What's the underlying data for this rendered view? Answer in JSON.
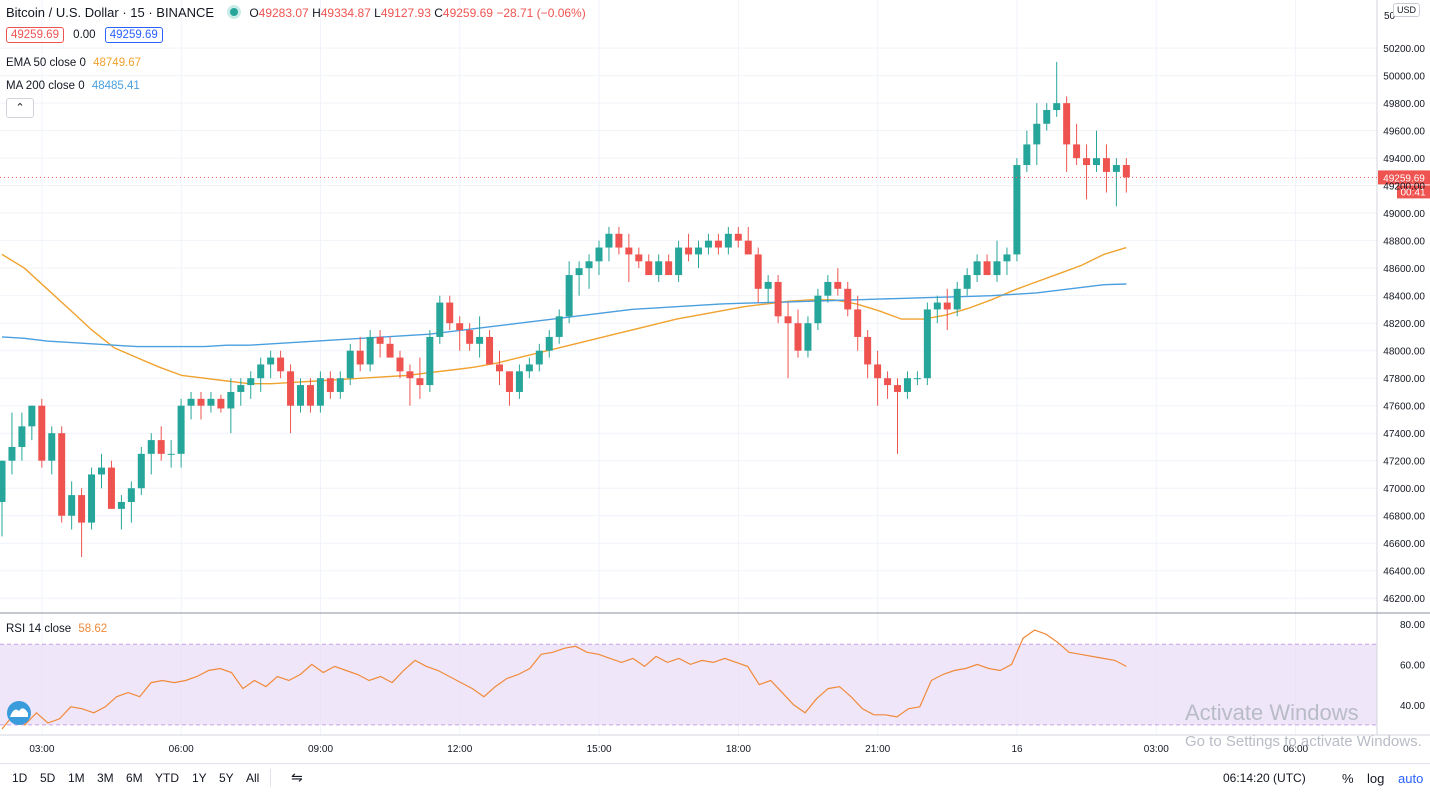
{
  "header": {
    "symbol": "Bitcoin / U.S. Dollar · 15 · BINANCE",
    "ohlc": [
      {
        "label": "O",
        "value": "49283.07"
      },
      {
        "label": "H",
        "value": "49334.87"
      },
      {
        "label": "L",
        "value": "49127.93"
      },
      {
        "label": "C",
        "value": "49259.69"
      }
    ],
    "change": "−28.71 (−0.06%)",
    "bid": "49259.69",
    "spread": "0.00",
    "ask": "49259.69"
  },
  "indicators": {
    "ema": {
      "label": "EMA 50 close 0",
      "value": "48749.67",
      "color": "#f0a22e"
    },
    "ma": {
      "label": "MA 200 close 0",
      "value": "48485.41",
      "color": "#4a9fdf"
    },
    "rsi": {
      "label": "RSI 14 close",
      "value": "58.62",
      "color": "#f08a3a"
    }
  },
  "price_axis": {
    "currency": "USD",
    "top_partial": "50",
    "last_price": "49259.69",
    "countdown": "00:41"
  },
  "time_axis": [
    "03:00",
    "06:00",
    "09:00",
    "12:00",
    "15:00",
    "18:00",
    "21:00",
    "16",
    "03:00",
    "06:00"
  ],
  "bottom_bar": {
    "ranges": [
      "1D",
      "5D",
      "1M",
      "3M",
      "6M",
      "YTD",
      "1Y",
      "5Y",
      "All"
    ],
    "clock": "06:14:20 (UTC)",
    "percent": "%",
    "log": "log",
    "auto": "auto"
  },
  "watermark": {
    "line1": "Activate Windows",
    "line2": "Go to Settings to activate Windows."
  },
  "colors": {
    "up": "#26a69a",
    "down": "#ef5350",
    "rsi_band": "#eadcf8",
    "grid": "#f0f3fa"
  },
  "chart_data": {
    "type": "candlestick",
    "title": "Bitcoin / U.S. Dollar · 15 · BINANCE",
    "interval": "15",
    "ylim": [
      46100,
      50550
    ],
    "yticks": [
      46200,
      46400,
      46600,
      46800,
      47000,
      47200,
      47400,
      47600,
      47800,
      48000,
      48200,
      48400,
      48600,
      48800,
      49000,
      49200,
      49400,
      49600,
      49800,
      50000,
      50200
    ],
    "x_ticks": [
      {
        "label": "03:00",
        "index": 2
      },
      {
        "label": "06:00",
        "index": 16
      },
      {
        "label": "09:00",
        "index": 30
      },
      {
        "label": "12:00",
        "index": 44
      },
      {
        "label": "15:00",
        "index": 58
      },
      {
        "label": "18:00",
        "index": 72
      },
      {
        "label": "21:00",
        "index": 86
      },
      {
        "label": "16",
        "index": 100
      },
      {
        "label": "03:00",
        "index": 114
      },
      {
        "label": "06:00",
        "index": 128
      }
    ],
    "candles": [
      [
        46900,
        47200,
        46650,
        47200
      ],
      [
        47200,
        47550,
        47100,
        47300
      ],
      [
        47300,
        47550,
        47200,
        47450
      ],
      [
        47450,
        47600,
        47350,
        47600
      ],
      [
        47600,
        47650,
        47150,
        47200
      ],
      [
        47200,
        47450,
        47100,
        47400
      ],
      [
        47400,
        47450,
        46750,
        46800
      ],
      [
        46800,
        47050,
        46700,
        46950
      ],
      [
        46950,
        47000,
        46500,
        46750
      ],
      [
        46750,
        47150,
        46700,
        47100
      ],
      [
        47100,
        47250,
        47000,
        47150
      ],
      [
        47150,
        47200,
        46850,
        46850
      ],
      [
        46850,
        46950,
        46700,
        46900
      ],
      [
        46900,
        47050,
        46750,
        47000
      ],
      [
        47000,
        47300,
        46950,
        47250
      ],
      [
        47250,
        47400,
        47100,
        47350
      ],
      [
        47350,
        47450,
        47200,
        47250
      ],
      [
        47250,
        47350,
        47150,
        47250
      ],
      [
        47250,
        47650,
        47150,
        47600
      ],
      [
        47600,
        47700,
        47500,
        47650
      ],
      [
        47650,
        47700,
        47500,
        47600
      ],
      [
        47600,
        47700,
        47550,
        47650
      ],
      [
        47650,
        47680,
        47550,
        47580
      ],
      [
        47580,
        47800,
        47400,
        47700
      ],
      [
        47700,
        47800,
        47600,
        47750
      ],
      [
        47750,
        47850,
        47650,
        47800
      ],
      [
        47800,
        47950,
        47700,
        47900
      ],
      [
        47900,
        48000,
        47800,
        47950
      ],
      [
        47950,
        48000,
        47800,
        47850
      ],
      [
        47850,
        47900,
        47400,
        47600
      ],
      [
        47600,
        47800,
        47550,
        47750
      ],
      [
        47750,
        47800,
        47550,
        47600
      ],
      [
        47600,
        47850,
        47550,
        47800
      ],
      [
        47800,
        47850,
        47650,
        47700
      ],
      [
        47700,
        47850,
        47650,
        47800
      ],
      [
        47800,
        48050,
        47750,
        48000
      ],
      [
        48000,
        48100,
        47850,
        47900
      ],
      [
        47900,
        48150,
        47850,
        48100
      ],
      [
        48100,
        48150,
        47950,
        48050
      ],
      [
        48050,
        48100,
        47950,
        47950
      ],
      [
        47950,
        48000,
        47800,
        47850
      ],
      [
        47850,
        47900,
        47600,
        47800
      ],
      [
        47800,
        47950,
        47650,
        47750
      ],
      [
        47750,
        48150,
        47700,
        48100
      ],
      [
        48100,
        48400,
        48050,
        48350
      ],
      [
        48350,
        48400,
        48150,
        48200
      ],
      [
        48200,
        48250,
        48000,
        48150
      ],
      [
        48150,
        48200,
        48000,
        48050
      ],
      [
        48050,
        48250,
        47950,
        48100
      ],
      [
        48100,
        48150,
        47900,
        47900
      ],
      [
        47900,
        48000,
        47750,
        47850
      ],
      [
        47850,
        47850,
        47600,
        47700
      ],
      [
        47700,
        47900,
        47650,
        47850
      ],
      [
        47850,
        47950,
        47800,
        47900
      ],
      [
        47900,
        48050,
        47850,
        48000
      ],
      [
        48000,
        48150,
        47950,
        48100
      ],
      [
        48100,
        48300,
        48050,
        48250
      ],
      [
        48250,
        48650,
        48200,
        48550
      ],
      [
        48550,
        48650,
        48400,
        48600
      ],
      [
        48600,
        48700,
        48450,
        48650
      ],
      [
        48650,
        48800,
        48550,
        48750
      ],
      [
        48750,
        48900,
        48650,
        48850
      ],
      [
        48850,
        48900,
        48700,
        48750
      ],
      [
        48750,
        48850,
        48500,
        48700
      ],
      [
        48700,
        48750,
        48600,
        48650
      ],
      [
        48650,
        48700,
        48550,
        48550
      ],
      [
        48550,
        48700,
        48500,
        48650
      ],
      [
        48650,
        48700,
        48550,
        48550
      ],
      [
        48550,
        48800,
        48500,
        48750
      ],
      [
        48750,
        48850,
        48650,
        48700
      ],
      [
        48700,
        48800,
        48600,
        48750
      ],
      [
        48750,
        48850,
        48700,
        48800
      ],
      [
        48800,
        48850,
        48700,
        48750
      ],
      [
        48750,
        48900,
        48700,
        48850
      ],
      [
        48850,
        48900,
        48750,
        48800
      ],
      [
        48800,
        48900,
        48700,
        48700
      ],
      [
        48700,
        48750,
        48350,
        48450
      ],
      [
        48450,
        48550,
        48350,
        48500
      ],
      [
        48500,
        48550,
        48200,
        48250
      ],
      [
        48250,
        48350,
        47800,
        48200
      ],
      [
        48200,
        48300,
        47950,
        48000
      ],
      [
        48000,
        48250,
        47950,
        48200
      ],
      [
        48200,
        48450,
        48150,
        48400
      ],
      [
        48400,
        48550,
        48350,
        48500
      ],
      [
        48500,
        48600,
        48400,
        48450
      ],
      [
        48450,
        48500,
        48250,
        48300
      ],
      [
        48300,
        48400,
        48000,
        48100
      ],
      [
        48100,
        48150,
        47800,
        47900
      ],
      [
        47900,
        48000,
        47600,
        47800
      ],
      [
        47800,
        47850,
        47650,
        47750
      ],
      [
        47750,
        47800,
        47250,
        47700
      ],
      [
        47700,
        47850,
        47650,
        47800
      ],
      [
        47800,
        47850,
        47750,
        47800
      ],
      [
        47800,
        48350,
        47750,
        48300
      ],
      [
        48300,
        48400,
        48200,
        48350
      ],
      [
        48350,
        48450,
        48150,
        48300
      ],
      [
        48300,
        48500,
        48250,
        48450
      ],
      [
        48450,
        48600,
        48400,
        48550
      ],
      [
        48550,
        48700,
        48500,
        48650
      ],
      [
        48650,
        48700,
        48550,
        48550
      ],
      [
        48550,
        48800,
        48500,
        48650
      ],
      [
        48650,
        48750,
        48550,
        48700
      ],
      [
        48700,
        49400,
        48650,
        49350
      ],
      [
        49350,
        49600,
        49300,
        49500
      ],
      [
        49500,
        49800,
        49350,
        49650
      ],
      [
        49650,
        49800,
        49600,
        49750
      ],
      [
        49750,
        50100,
        49700,
        49800
      ],
      [
        49800,
        49850,
        49300,
        49500
      ],
      [
        49500,
        49650,
        49350,
        49400
      ],
      [
        49400,
        49500,
        49100,
        49350
      ],
      [
        49350,
        49600,
        49300,
        49400
      ],
      [
        49400,
        49500,
        49150,
        49300
      ],
      [
        49300,
        49400,
        49050,
        49350
      ],
      [
        49350,
        49400,
        49150,
        49260
      ]
    ],
    "series": [
      {
        "name": "EMA 50 close 0",
        "values": [
          48700,
          48600,
          48450,
          48300,
          48150,
          48020,
          47950,
          47880,
          47820,
          47800,
          47780,
          47760,
          47760,
          47770,
          47780,
          47790,
          47800,
          47810,
          47820,
          47840,
          47860,
          47880,
          47910,
          47950,
          47990,
          48030,
          48070,
          48110,
          48150,
          48190,
          48230,
          48260,
          48290,
          48320,
          48340,
          48360,
          48370,
          48370,
          48340,
          48290,
          48230,
          48230,
          48260,
          48310,
          48370,
          48440,
          48500,
          48560,
          48620,
          48700,
          48750
        ]
      },
      {
        "name": "MA 200 close 0",
        "values": [
          48100,
          48090,
          48070,
          48060,
          48050,
          48040,
          48030,
          48030,
          48030,
          48030,
          48040,
          48040,
          48050,
          48060,
          48070,
          48080,
          48090,
          48100,
          48110,
          48120,
          48140,
          48160,
          48180,
          48200,
          48220,
          48240,
          48260,
          48280,
          48300,
          48310,
          48320,
          48330,
          48340,
          48345,
          48350,
          48355,
          48360,
          48365,
          48370,
          48375,
          48380,
          48385,
          48390,
          48395,
          48400,
          48410,
          48420,
          48440,
          48460,
          48480,
          48485
        ]
      }
    ],
    "rsi": {
      "label": "RSI 14 close",
      "ylim": [
        25,
        85
      ],
      "yticks": [
        40,
        60,
        80
      ],
      "band": [
        30,
        70
      ],
      "values": [
        28,
        35,
        30,
        36,
        31,
        33,
        39,
        38,
        36,
        39,
        44,
        46,
        44,
        51,
        52,
        51,
        52,
        54,
        57,
        58,
        56,
        48,
        52,
        49,
        54,
        52,
        55,
        60,
        56,
        59,
        57,
        55,
        52,
        54,
        51,
        57,
        62,
        59,
        57,
        54,
        51,
        48,
        44,
        49,
        53,
        55,
        58,
        65,
        66,
        68,
        69,
        66,
        65,
        63,
        61,
        63,
        59,
        64,
        61,
        63,
        60,
        62,
        61,
        63,
        61,
        59,
        50,
        52,
        46,
        40,
        36,
        43,
        48,
        49,
        44,
        38,
        35,
        35,
        34,
        38,
        39,
        52,
        55,
        57,
        58,
        60,
        58,
        57,
        60,
        73,
        77,
        75,
        71,
        66,
        65,
        64,
        63,
        62,
        59
      ]
    }
  }
}
